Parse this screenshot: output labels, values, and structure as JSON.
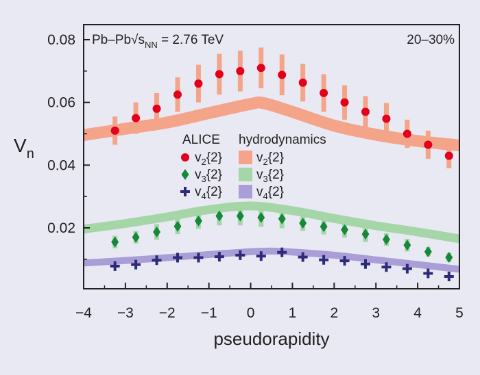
{
  "chart_data": {
    "type": "scatter",
    "title": "Pb–Pb√s",
    "title_subscript": "NN",
    "title_suffix": " = 2.76 TeV",
    "corner_label": "20–30%",
    "xlabel": "pseudorapidity",
    "ylabel": "V",
    "ylabel_subscript": "n",
    "xlim": [
      -4,
      5
    ],
    "ylim": [
      0,
      0.085
    ],
    "xticks": [
      -4,
      -3,
      -2,
      -1,
      0,
      1,
      2,
      3,
      4,
      5
    ],
    "xtick_labels": [
      "−4",
      "−3",
      "−2",
      "−1",
      "0",
      "1",
      "2",
      "3",
      "4",
      "5"
    ],
    "yticks": [
      0.02,
      0.04,
      0.06,
      0.08
    ],
    "ytick_labels": [
      "0.02",
      "0.04",
      "0.06",
      "0.08"
    ],
    "grid": false,
    "legend": {
      "position": "center",
      "data_title": "ALICE",
      "model_title": "hydrodynamics",
      "data_entries": [
        {
          "base": "v",
          "sub": "2",
          "suffix": "{2}",
          "marker": "circle"
        },
        {
          "base": "v",
          "sub": "3",
          "suffix": "{2}",
          "marker": "diamond"
        },
        {
          "base": "v",
          "sub": "4",
          "suffix": "{2}",
          "marker": "plus"
        }
      ],
      "model_entries": [
        {
          "base": "v",
          "sub": "2",
          "suffix": "{2}"
        },
        {
          "base": "v",
          "sub": "3",
          "suffix": "{2}"
        },
        {
          "base": "v",
          "sub": "4",
          "suffix": "{2}"
        }
      ]
    },
    "x": [
      -3.25,
      -2.75,
      -2.25,
      -1.75,
      -1.25,
      -0.75,
      -0.25,
      0.25,
      0.75,
      1.25,
      1.75,
      2.25,
      2.75,
      3.25,
      3.75,
      4.25,
      4.75
    ],
    "series": [
      {
        "marker": "circle",
        "color": "#e3001b",
        "band_color": "#f4a489",
        "values": [
          0.051,
          0.055,
          0.058,
          0.0625,
          0.066,
          0.069,
          0.07,
          0.071,
          0.0688,
          0.0663,
          0.063,
          0.06,
          0.057,
          0.0548,
          0.05,
          0.0465,
          0.043
        ],
        "errors": [
          0.0045,
          0.005,
          0.005,
          0.0055,
          0.006,
          0.0065,
          0.0065,
          0.0065,
          0.0065,
          0.006,
          0.006,
          0.0055,
          0.005,
          0.005,
          0.0045,
          0.0045,
          0.004
        ],
        "model_x": [
          -4,
          -3,
          -2,
          -1,
          0,
          0.3,
          1,
          2,
          3,
          4,
          5
        ],
        "model_y": [
          0.0496,
          0.0516,
          0.0536,
          0.0566,
          0.0595,
          0.0598,
          0.057,
          0.0526,
          0.0497,
          0.0477,
          0.0463
        ],
        "model_width": 0.0038
      },
      {
        "marker": "diamond",
        "color": "#16883a",
        "band_color": "#a4d6a7",
        "values": [
          0.0155,
          0.017,
          0.0187,
          0.0205,
          0.0222,
          0.0238,
          0.0238,
          0.0233,
          0.0229,
          0.0215,
          0.0204,
          0.0194,
          0.018,
          0.0163,
          0.0145,
          0.0124,
          0.0106
        ],
        "errors": [
          0.002,
          0.002,
          0.0025,
          0.0025,
          0.0025,
          0.003,
          0.003,
          0.003,
          0.003,
          0.0025,
          0.0025,
          0.0025,
          0.0025,
          0.002,
          0.002,
          0.0015,
          0.0015
        ],
        "model_x": [
          -4,
          -3,
          -2,
          -1,
          0,
          1,
          2,
          3,
          4,
          5
        ],
        "model_y": [
          0.0196,
          0.0214,
          0.0235,
          0.0258,
          0.027,
          0.0255,
          0.023,
          0.0207,
          0.0187,
          0.0165
        ],
        "model_width": 0.0028
      },
      {
        "marker": "plus",
        "color": "#2e2a7a",
        "band_color": "#a99ed6",
        "values": [
          0.0078,
          0.0083,
          0.0097,
          0.0105,
          0.0105,
          0.0108,
          0.0113,
          0.011,
          0.0122,
          0.0107,
          0.0098,
          0.0095,
          0.0085,
          0.0075,
          0.007,
          0.0055,
          0.0045
        ],
        "errors": [
          0,
          0,
          0,
          0,
          0,
          0,
          0,
          0,
          0,
          0,
          0,
          0,
          0,
          0,
          0,
          0,
          0
        ],
        "model_x": [
          -4,
          -3,
          -2,
          -1,
          0,
          0.5,
          1,
          2,
          3,
          4,
          5
        ],
        "model_y": [
          0.0088,
          0.0096,
          0.0105,
          0.0115,
          0.0124,
          0.0126,
          0.0123,
          0.0113,
          0.0098,
          0.0083,
          0.0068
        ],
        "model_width": 0.0022
      }
    ]
  }
}
